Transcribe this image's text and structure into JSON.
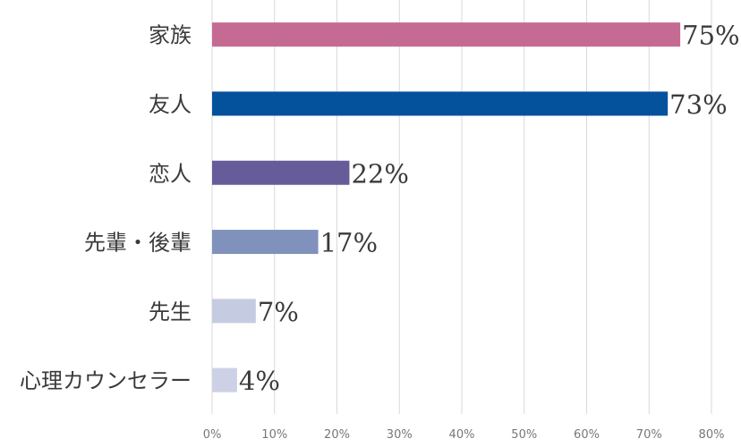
{
  "chart_data": {
    "type": "bar",
    "orientation": "horizontal",
    "categories": [
      "家族",
      "友人",
      "恋人",
      "先輩・後輩",
      "先生",
      "心理カウンセラー"
    ],
    "values": [
      75,
      73,
      22,
      17,
      7,
      4
    ],
    "value_labels": [
      "75%",
      "73%",
      "22%",
      "17%",
      "7%",
      "4%"
    ],
    "colors": [
      "#c56a93",
      "#04529c",
      "#665c9a",
      "#8092bc",
      "#c5cbe1",
      "#cdd1e5"
    ],
    "xlim": [
      0,
      80
    ],
    "xticks": [
      0,
      10,
      20,
      30,
      40,
      50,
      60,
      70,
      80
    ],
    "xtick_labels": [
      "0%",
      "10%",
      "20%",
      "30%",
      "40%",
      "50%",
      "60%",
      "70%",
      "80%"
    ],
    "grid": true,
    "legend": "none"
  }
}
